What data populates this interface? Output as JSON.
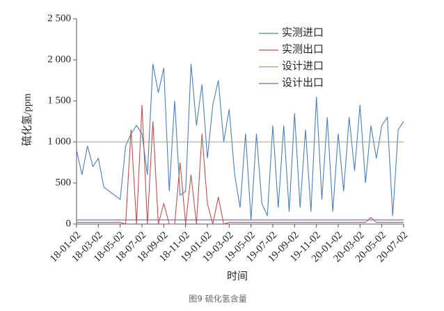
{
  "chart_data": {
    "type": "line",
    "x_label": "时间",
    "y_label": "硫化氢/ppm",
    "caption": "图9 硫化氢含量",
    "categories": [
      "18-01-02",
      null,
      null,
      null,
      "18-03-02",
      null,
      null,
      null,
      "18-05-02",
      null,
      null,
      null,
      "18-07-02",
      null,
      null,
      null,
      "18-09-02",
      null,
      null,
      null,
      "18-11-02",
      null,
      null,
      null,
      "19-01-02",
      null,
      null,
      null,
      "19-03-02",
      null,
      null,
      null,
      "19-05-02",
      null,
      null,
      null,
      "19-07-02",
      null,
      null,
      null,
      "19-09-02",
      null,
      null,
      null,
      "19-11-02",
      null,
      null,
      null,
      "20-01-02",
      null,
      null,
      null,
      "20-03-02",
      null,
      null,
      null,
      "20-05-02",
      null,
      null,
      null,
      "20-07-02"
    ],
    "series": [
      {
        "name": "实测进口",
        "color": "#4a7ebb",
        "values": [
          900,
          600,
          950,
          700,
          800,
          450,
          400,
          350,
          300,
          950,
          1100,
          1200,
          1100,
          600,
          1950,
          1600,
          1900,
          400,
          1500,
          350,
          400,
          1950,
          1200,
          1700,
          800,
          1450,
          1750,
          1000,
          1400,
          600,
          200,
          1100,
          50,
          1100,
          250,
          100,
          1200,
          200,
          1200,
          150,
          1350,
          200,
          1150,
          150,
          1550,
          300,
          1300,
          150,
          1100,
          400,
          1300,
          650,
          1450,
          500,
          1200,
          800,
          1200,
          1300,
          100,
          1150,
          1250
        ]
      },
      {
        "name": "实测出口",
        "color": "#c0504d",
        "values": [
          20,
          20,
          20,
          20,
          20,
          20,
          20,
          20,
          20,
          0,
          1150,
          0,
          1450,
          0,
          1250,
          0,
          250,
          0,
          0,
          750,
          0,
          600,
          0,
          1100,
          250,
          0,
          330,
          0,
          20,
          20,
          20,
          20,
          20,
          20,
          20,
          20,
          20,
          20,
          20,
          20,
          20,
          20,
          20,
          20,
          20,
          20,
          20,
          20,
          20,
          20,
          20,
          20,
          20,
          20,
          80,
          20,
          20,
          20,
          20,
          20,
          20
        ]
      },
      {
        "name": "设计进口",
        "color": "#a39e78",
        "values": [
          1000,
          1000,
          1000,
          1000,
          1000,
          1000,
          1000,
          1000,
          1000,
          1000,
          1000,
          1000,
          1000,
          1000,
          1000,
          1000,
          1000,
          1000,
          1000,
          1000,
          1000,
          1000,
          1000,
          1000,
          1000,
          1000,
          1000,
          1000,
          1000,
          1000,
          1000,
          1000,
          1000,
          1000,
          1000,
          1000,
          1000,
          1000,
          1000,
          1000,
          1000,
          1000,
          1000,
          1000,
          1000,
          1000,
          1000,
          1000,
          1000,
          1000,
          1000,
          1000,
          1000,
          1000,
          1000,
          1000,
          1000,
          1000,
          1000,
          1000,
          1000
        ]
      },
      {
        "name": "设计出口",
        "color": "#7b5ea7",
        "values": [
          50,
          50,
          50,
          50,
          50,
          50,
          50,
          50,
          50,
          50,
          50,
          50,
          50,
          50,
          50,
          50,
          50,
          50,
          50,
          50,
          50,
          50,
          50,
          50,
          50,
          50,
          50,
          50,
          50,
          50,
          50,
          50,
          50,
          50,
          50,
          50,
          50,
          50,
          50,
          50,
          50,
          50,
          50,
          50,
          50,
          50,
          50,
          50,
          50,
          50,
          50,
          50,
          50,
          50,
          50,
          50,
          50,
          50,
          50,
          50,
          50
        ]
      }
    ],
    "ylim": [
      0,
      2500
    ],
    "yticks": [
      0,
      500,
      {
        "value": 1000,
        "label": "1 000"
      },
      {
        "value": 1500,
        "label": "1 500"
      },
      {
        "value": 2000,
        "label": "2 000"
      },
      {
        "value": 2500,
        "label": "2 500"
      }
    ]
  }
}
